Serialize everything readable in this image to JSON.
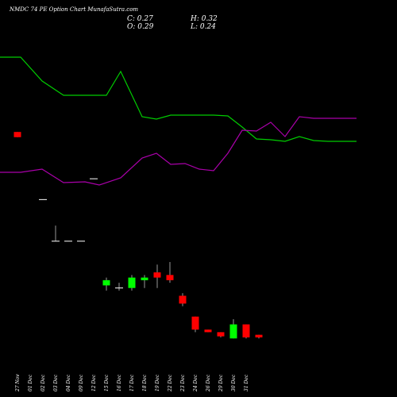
{
  "chart_data": {
    "type": "candlestick",
    "title": "NMDC 74  PE Option  Chart MunafaSutra.com",
    "ohlc_labels": {
      "open": "O: 0.29",
      "close": "C: 0.27",
      "high": "H: 0.32",
      "low": "L: 0.24"
    },
    "categories": [
      "27 Nov",
      "01 Dec",
      "02 Dec",
      "03 Dec",
      "04 Dec",
      "09 Dec",
      "12 Dec",
      "15 Dec",
      "16 Dec",
      "17 Dec",
      "18 Dec",
      "19 Dec",
      "22 Dec",
      "23 Dec",
      "24 Dec",
      "26 Dec",
      "29 Dec",
      "30 Dec",
      "31 Dec"
    ],
    "candles": [
      {
        "x": 1,
        "open": 0.76,
        "high": 0.76,
        "low": 0.75,
        "close": 0.75,
        "dir": "down"
      },
      {
        "x": 3,
        "open": 0.63,
        "high": 0.63,
        "low": 0.63,
        "close": 0.63,
        "dir": "flat"
      },
      {
        "x": 4,
        "open": 0.55,
        "high": 0.58,
        "low": 0.55,
        "close": 0.55,
        "dir": "flat"
      },
      {
        "x": 5,
        "open": 0.55,
        "high": 0.55,
        "low": 0.55,
        "close": 0.55,
        "dir": "flat"
      },
      {
        "x": 6,
        "open": 0.55,
        "high": 0.55,
        "low": 0.55,
        "close": 0.55,
        "dir": "flat"
      },
      {
        "x": 7,
        "open": 0.67,
        "high": 0.67,
        "low": 0.67,
        "close": 0.67,
        "dir": "flat"
      },
      {
        "x": 8,
        "open": 0.465,
        "high": 0.48,
        "low": 0.455,
        "close": 0.475,
        "dir": "up"
      },
      {
        "x": 9,
        "open": 0.46,
        "high": 0.47,
        "low": 0.455,
        "close": 0.46,
        "dir": "flat"
      },
      {
        "x": 10,
        "open": 0.46,
        "high": 0.485,
        "low": 0.455,
        "close": 0.48,
        "dir": "up"
      },
      {
        "x": 11,
        "open": 0.475,
        "high": 0.485,
        "low": 0.46,
        "close": 0.48,
        "dir": "up"
      },
      {
        "x": 12,
        "open": 0.49,
        "high": 0.505,
        "low": 0.46,
        "close": 0.48,
        "dir": "down"
      },
      {
        "x": 13,
        "open": 0.485,
        "high": 0.51,
        "low": 0.47,
        "close": 0.475,
        "dir": "down"
      },
      {
        "x": 14,
        "open": 0.445,
        "high": 0.45,
        "low": 0.425,
        "close": 0.43,
        "dir": "down"
      },
      {
        "x": 15,
        "open": 0.405,
        "high": 0.405,
        "low": 0.375,
        "close": 0.38,
        "dir": "down"
      },
      {
        "x": 16,
        "open": 0.38,
        "high": 0.38,
        "low": 0.375,
        "close": 0.375,
        "dir": "down"
      },
      {
        "x": 17,
        "open": 0.375,
        "high": 0.375,
        "low": 0.365,
        "close": 0.367,
        "dir": "down"
      },
      {
        "x": 18,
        "open": 0.363,
        "high": 0.4,
        "low": 0.363,
        "close": 0.39,
        "dir": "up"
      },
      {
        "x": 19,
        "open": 0.39,
        "high": 0.39,
        "low": 0.363,
        "close": 0.365,
        "dir": "down"
      },
      {
        "x": 20,
        "open": 0.37,
        "high": 0.37,
        "low": 0.363,
        "close": 0.365,
        "dir": "down"
      }
    ],
    "green_line": {
      "name": "",
      "x": [
        0,
        1.5,
        3,
        4.5,
        6,
        7.5,
        8.5,
        10,
        11,
        12,
        14,
        15,
        16,
        17,
        18,
        19,
        20,
        21,
        22,
        23,
        24,
        25
      ],
      "values": [
        72,
        72,
        102,
        120,
        120,
        120,
        90,
        147,
        150,
        145,
        145,
        145,
        146,
        160,
        175,
        176,
        178,
        172,
        177,
        178,
        178,
        178
      ]
    },
    "magenta_line": {
      "name": "",
      "x": [
        0,
        1.5,
        3,
        4.5,
        6,
        7,
        8.5,
        10,
        11,
        12,
        13,
        14,
        15,
        16,
        17,
        18,
        19,
        20,
        21,
        22,
        23,
        24,
        25
      ],
      "values": [
        217,
        217,
        213,
        230,
        229,
        233,
        224,
        199,
        193,
        207,
        206,
        213,
        215,
        193,
        164,
        165,
        154,
        172,
        147,
        149,
        149,
        149,
        149
      ]
    },
    "indicator_scale": "pixel-like units (smaller is higher)",
    "colors": {
      "up": "#00ff00",
      "down": "#ff0000",
      "flat": "#ffffff",
      "green_line": "#00cc00",
      "magenta_line": "#aa00aa",
      "background": "#000000",
      "text": "#ffffff"
    }
  }
}
